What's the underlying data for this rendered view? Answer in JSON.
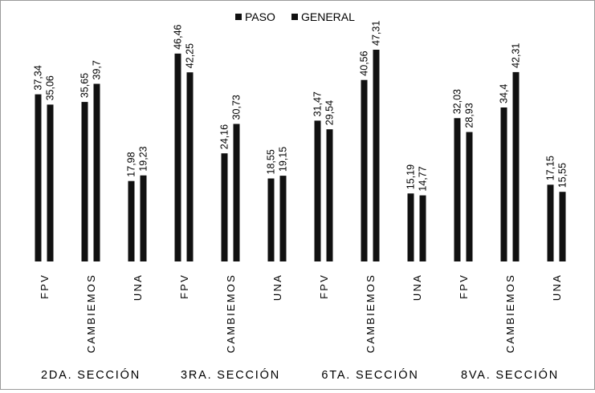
{
  "chart_data": {
    "type": "bar",
    "legend_position": "top-center",
    "grid": false,
    "ylim": [
      0,
      50
    ],
    "series": [
      {
        "name": "PASO",
        "color": "#111111"
      },
      {
        "name": "GENERAL",
        "color": "#111111"
      }
    ],
    "groups": [
      {
        "label": "2DA. SECCIÓN",
        "categories": [
          {
            "label": "FPV",
            "values": [
              37.34,
              35.06
            ],
            "value_labels": [
              "37,34",
              "35,06"
            ]
          },
          {
            "label": "CAMBIEMOS",
            "values": [
              35.65,
              39.7
            ],
            "value_labels": [
              "35,65",
              "39,7"
            ]
          },
          {
            "label": "UNA",
            "values": [
              17.98,
              19.23
            ],
            "value_labels": [
              "17,98",
              "19,23"
            ]
          }
        ]
      },
      {
        "label": "3RA. SECCIÓN",
        "categories": [
          {
            "label": "FPV",
            "values": [
              46.46,
              42.25
            ],
            "value_labels": [
              "46,46",
              "42,25"
            ]
          },
          {
            "label": "CAMBIEMOS",
            "values": [
              24.16,
              30.73
            ],
            "value_labels": [
              "24,16",
              "30,73"
            ]
          },
          {
            "label": "UNA",
            "values": [
              18.55,
              19.15
            ],
            "value_labels": [
              "18,55",
              "19,15"
            ]
          }
        ]
      },
      {
        "label": "6TA. SECCIÓN",
        "categories": [
          {
            "label": "FPV",
            "values": [
              31.47,
              29.54
            ],
            "value_labels": [
              "31,47",
              "29,54"
            ]
          },
          {
            "label": "CAMBIEMOS",
            "values": [
              40.56,
              47.31
            ],
            "value_labels": [
              "40,56",
              "47,31"
            ]
          },
          {
            "label": "UNA",
            "values": [
              15.19,
              14.77
            ],
            "value_labels": [
              "15,19",
              "14,77"
            ]
          }
        ]
      },
      {
        "label": "8VA. SECCIÓN",
        "categories": [
          {
            "label": "FPV",
            "values": [
              32.03,
              28.93
            ],
            "value_labels": [
              "32,03",
              "28,93"
            ]
          },
          {
            "label": "CAMBIEMOS",
            "values": [
              34.4,
              42.31
            ],
            "value_labels": [
              "34,4",
              "42,31"
            ]
          },
          {
            "label": "UNA",
            "values": [
              17.15,
              15.55
            ],
            "value_labels": [
              "17,15",
              "15,55"
            ]
          }
        ]
      }
    ]
  }
}
